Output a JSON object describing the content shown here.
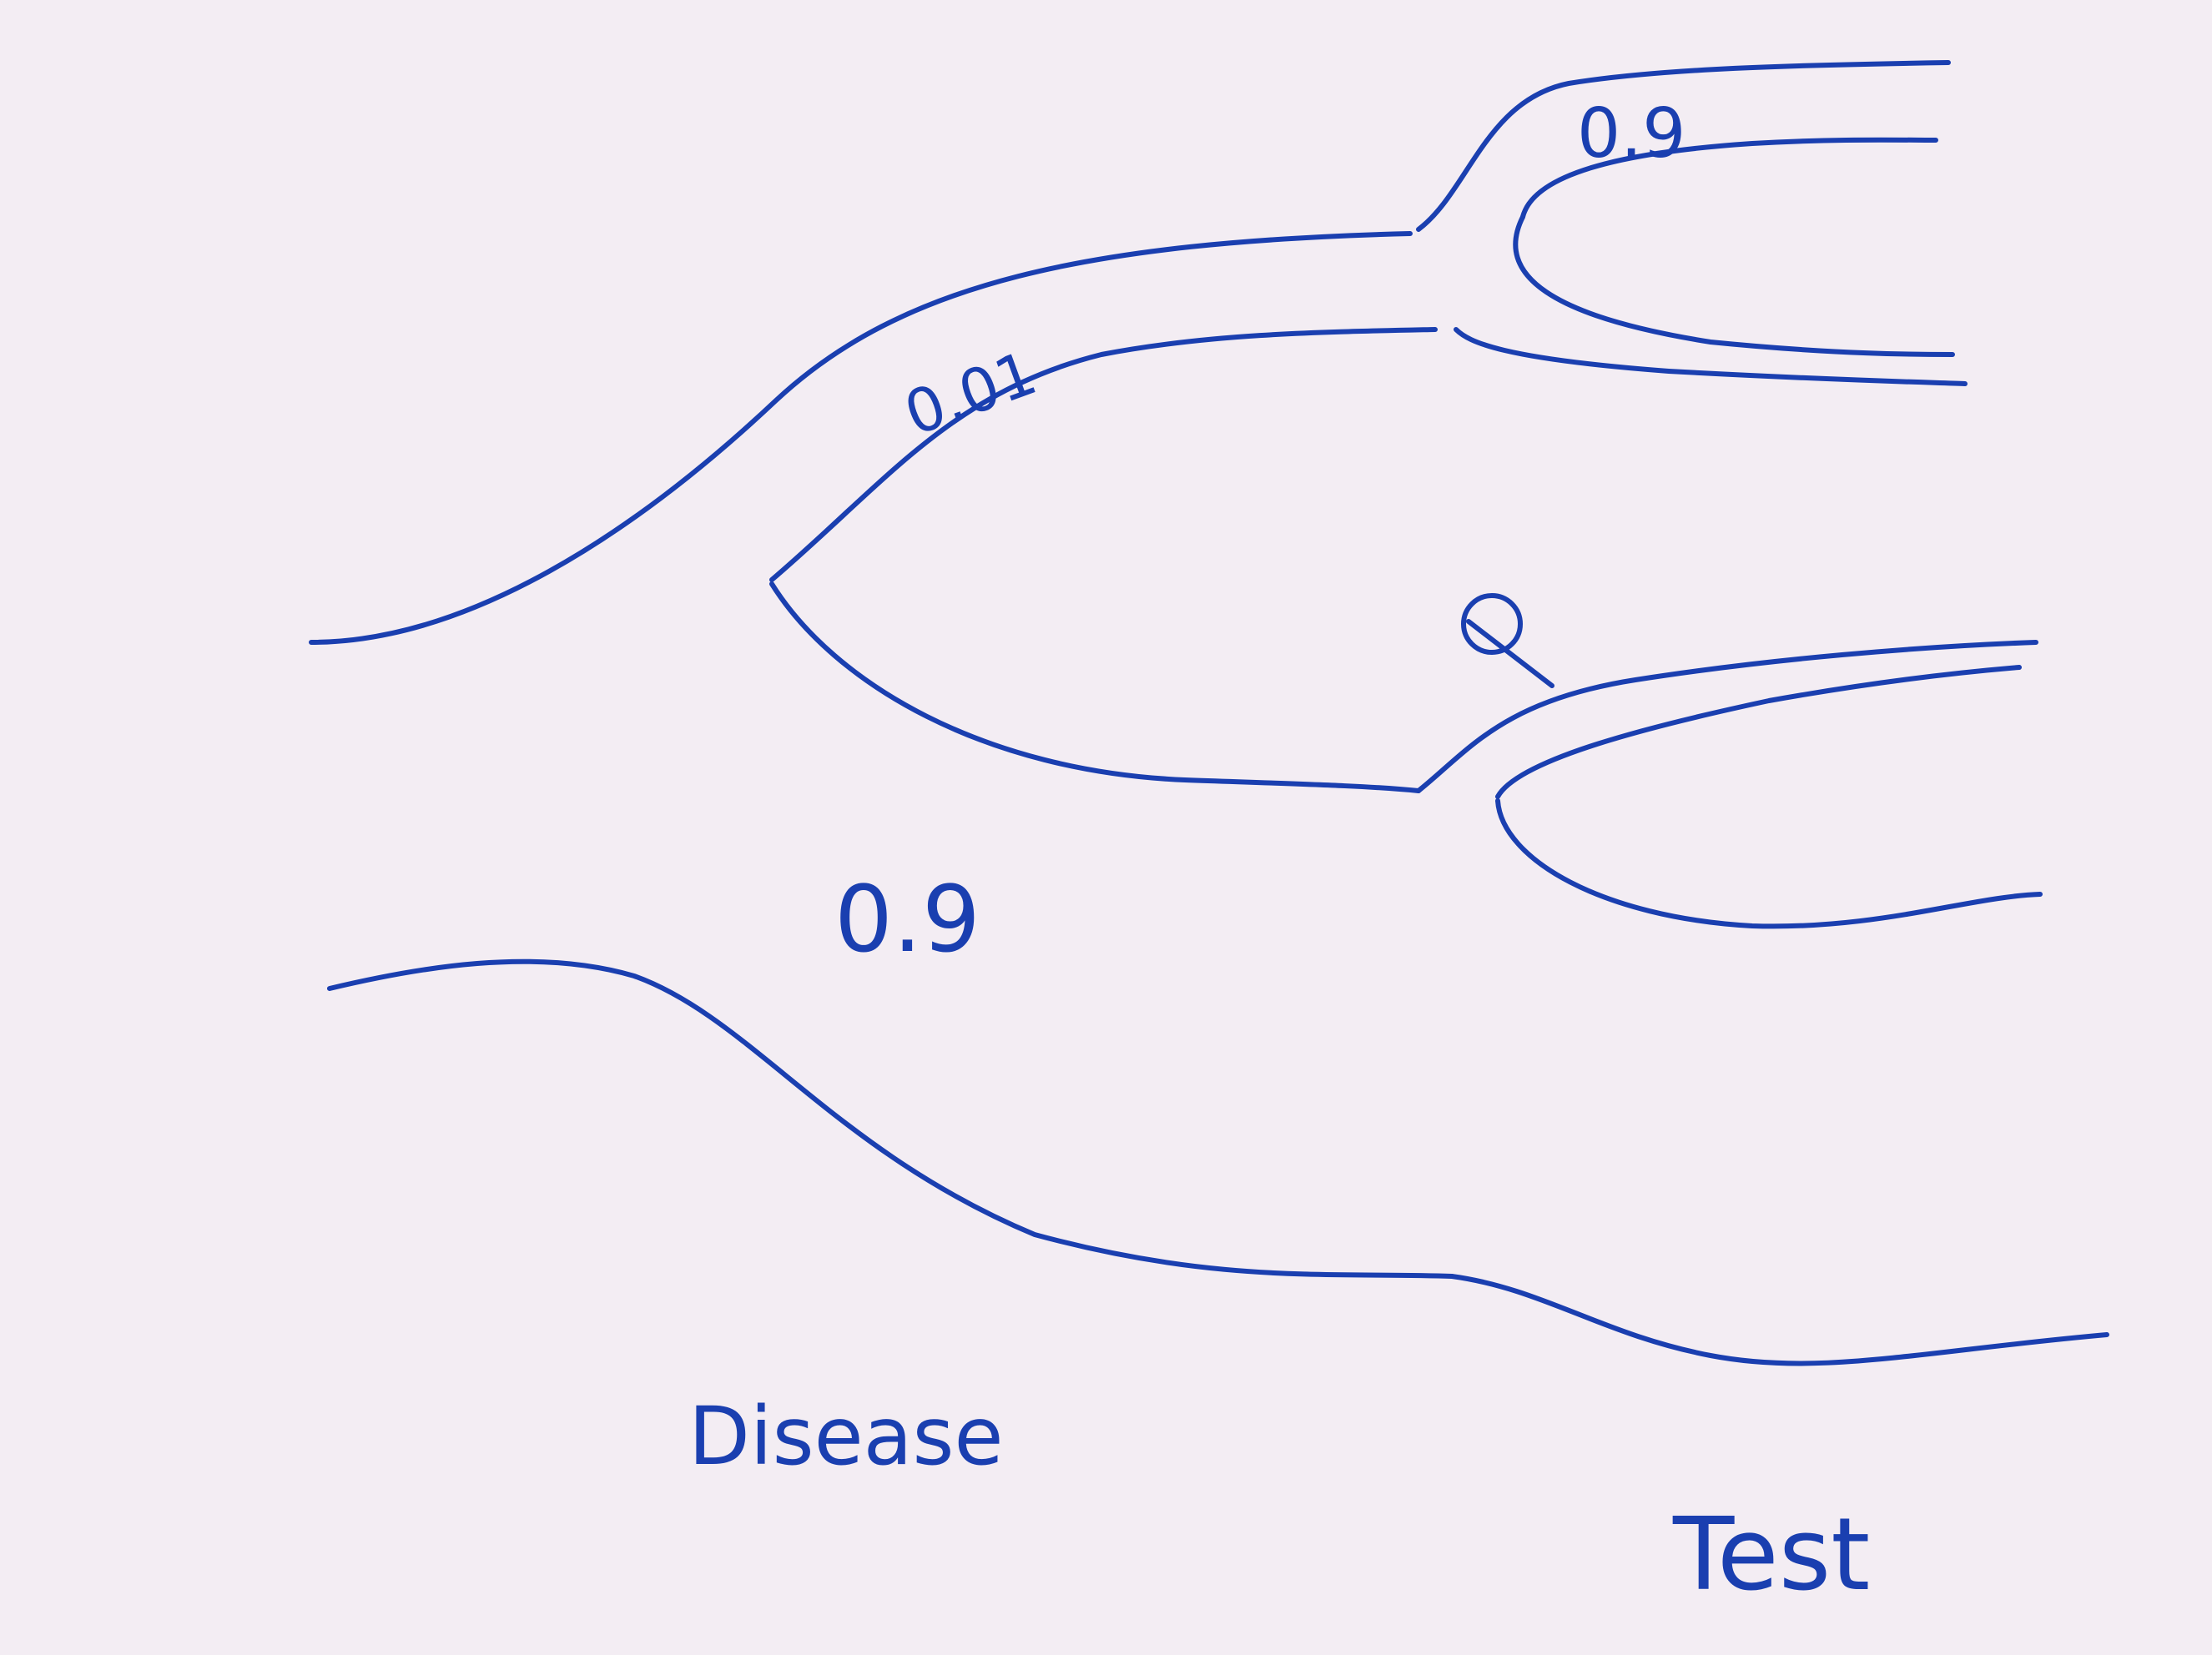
{
  "diagram": {
    "ink_color": "#1a3fb0",
    "paper_color": "#f3edf3",
    "labels": {
      "branch_disease_upper": "0.01",
      "branch_test_upper": "0.9",
      "branch_test_lower_q": "Q",
      "branch_disease_lower": "0.9",
      "axis_disease": "Disease",
      "axis_test": "Test"
    }
  }
}
